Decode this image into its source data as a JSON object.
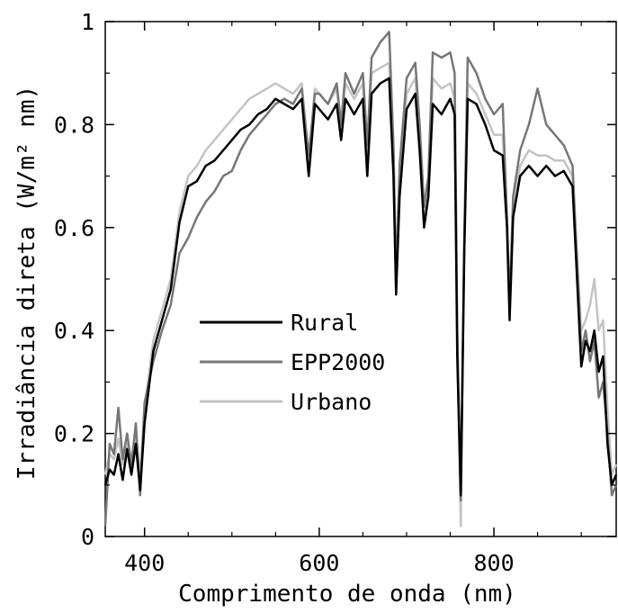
{
  "chart_data": {
    "type": "line",
    "xlabel": "Comprimento de onda (nm)",
    "ylabel": "Irradiância direta (W/m² nm)",
    "xlim": [
      355,
      940
    ],
    "ylim": [
      0,
      1.0
    ],
    "x_ticks": [
      400,
      600,
      800
    ],
    "x_tick_labels": [
      "400",
      "600",
      "800"
    ],
    "y_ticks": [
      0,
      0.2,
      0.4,
      0.6,
      0.8,
      1.0
    ],
    "y_tick_labels": [
      "0",
      "0.2",
      "0.4",
      "0.6",
      "0.8",
      "1"
    ],
    "grid": false,
    "legend_position": "center-left",
    "series": [
      {
        "name": "Rural",
        "color": "#000000",
        "x": [
          355,
          360,
          365,
          370,
          375,
          380,
          385,
          390,
          395,
          400,
          410,
          420,
          430,
          440,
          450,
          460,
          470,
          480,
          490,
          500,
          510,
          520,
          530,
          540,
          550,
          560,
          570,
          580,
          588,
          595,
          600,
          610,
          620,
          625,
          630,
          640,
          650,
          655,
          660,
          670,
          680,
          685,
          688,
          692,
          700,
          710,
          715,
          720,
          725,
          730,
          740,
          750,
          755,
          758,
          762,
          766,
          770,
          780,
          790,
          800,
          810,
          815,
          818,
          822,
          830,
          840,
          850,
          860,
          870,
          880,
          890,
          900,
          905,
          910,
          915,
          920,
          925,
          930,
          935,
          940
        ],
        "y": [
          0.1,
          0.13,
          0.12,
          0.16,
          0.11,
          0.17,
          0.12,
          0.18,
          0.09,
          0.22,
          0.36,
          0.42,
          0.48,
          0.61,
          0.68,
          0.69,
          0.72,
          0.73,
          0.75,
          0.77,
          0.79,
          0.8,
          0.82,
          0.83,
          0.85,
          0.84,
          0.83,
          0.85,
          0.7,
          0.84,
          0.83,
          0.81,
          0.84,
          0.77,
          0.85,
          0.82,
          0.85,
          0.7,
          0.86,
          0.88,
          0.89,
          0.7,
          0.47,
          0.66,
          0.83,
          0.86,
          0.75,
          0.6,
          0.66,
          0.84,
          0.82,
          0.85,
          0.82,
          0.35,
          0.08,
          0.55,
          0.85,
          0.84,
          0.8,
          0.75,
          0.74,
          0.6,
          0.42,
          0.62,
          0.7,
          0.72,
          0.7,
          0.72,
          0.7,
          0.71,
          0.68,
          0.33,
          0.38,
          0.36,
          0.4,
          0.32,
          0.35,
          0.18,
          0.1,
          0.12
        ]
      },
      {
        "name": "EPP2000",
        "color": "#777777",
        "x": [
          355,
          360,
          365,
          370,
          375,
          380,
          385,
          390,
          395,
          400,
          410,
          420,
          430,
          440,
          450,
          460,
          470,
          480,
          490,
          500,
          510,
          520,
          530,
          540,
          550,
          560,
          570,
          580,
          588,
          595,
          600,
          610,
          620,
          625,
          630,
          640,
          650,
          655,
          660,
          670,
          680,
          685,
          688,
          692,
          700,
          710,
          715,
          720,
          725,
          730,
          740,
          750,
          755,
          758,
          762,
          766,
          770,
          780,
          790,
          800,
          810,
          815,
          818,
          822,
          830,
          840,
          850,
          860,
          870,
          880,
          890,
          900,
          905,
          910,
          915,
          920,
          925,
          930,
          935,
          940
        ],
        "y": [
          0.02,
          0.18,
          0.16,
          0.25,
          0.15,
          0.2,
          0.14,
          0.22,
          0.08,
          0.26,
          0.34,
          0.4,
          0.45,
          0.55,
          0.58,
          0.62,
          0.65,
          0.67,
          0.7,
          0.71,
          0.75,
          0.78,
          0.8,
          0.82,
          0.84,
          0.85,
          0.84,
          0.87,
          0.74,
          0.86,
          0.86,
          0.84,
          0.88,
          0.8,
          0.9,
          0.86,
          0.9,
          0.76,
          0.93,
          0.96,
          0.98,
          0.76,
          0.5,
          0.72,
          0.89,
          0.92,
          0.8,
          0.64,
          0.7,
          0.94,
          0.93,
          0.94,
          0.9,
          0.4,
          0.07,
          0.58,
          0.93,
          0.9,
          0.85,
          0.82,
          0.84,
          0.62,
          0.45,
          0.66,
          0.75,
          0.8,
          0.87,
          0.8,
          0.78,
          0.76,
          0.72,
          0.36,
          0.4,
          0.34,
          0.38,
          0.27,
          0.3,
          0.2,
          0.08,
          0.1
        ]
      },
      {
        "name": "Urbano",
        "color": "#c4c4c4",
        "x": [
          355,
          360,
          365,
          370,
          375,
          380,
          385,
          390,
          395,
          400,
          410,
          420,
          430,
          440,
          450,
          460,
          470,
          480,
          490,
          500,
          510,
          520,
          530,
          540,
          550,
          560,
          570,
          580,
          588,
          595,
          600,
          610,
          620,
          625,
          630,
          640,
          650,
          655,
          660,
          670,
          680,
          685,
          688,
          692,
          700,
          710,
          715,
          720,
          725,
          730,
          740,
          750,
          755,
          758,
          762,
          766,
          770,
          780,
          790,
          800,
          810,
          815,
          818,
          822,
          830,
          840,
          850,
          860,
          870,
          880,
          890,
          900,
          905,
          910,
          915,
          920,
          925,
          930,
          935,
          940
        ],
        "y": [
          0.12,
          0.16,
          0.15,
          0.19,
          0.14,
          0.18,
          0.15,
          0.2,
          0.12,
          0.25,
          0.38,
          0.44,
          0.5,
          0.63,
          0.7,
          0.72,
          0.75,
          0.77,
          0.79,
          0.81,
          0.83,
          0.85,
          0.86,
          0.87,
          0.88,
          0.87,
          0.86,
          0.88,
          0.72,
          0.87,
          0.86,
          0.84,
          0.87,
          0.79,
          0.88,
          0.85,
          0.88,
          0.73,
          0.9,
          0.91,
          0.92,
          0.73,
          0.48,
          0.69,
          0.86,
          0.89,
          0.77,
          0.62,
          0.68,
          0.89,
          0.87,
          0.88,
          0.85,
          0.38,
          0.02,
          0.56,
          0.88,
          0.86,
          0.82,
          0.78,
          0.78,
          0.62,
          0.44,
          0.64,
          0.72,
          0.75,
          0.74,
          0.74,
          0.73,
          0.73,
          0.7,
          0.4,
          0.42,
          0.45,
          0.5,
          0.4,
          0.42,
          0.25,
          0.12,
          0.14
        ]
      }
    ]
  }
}
